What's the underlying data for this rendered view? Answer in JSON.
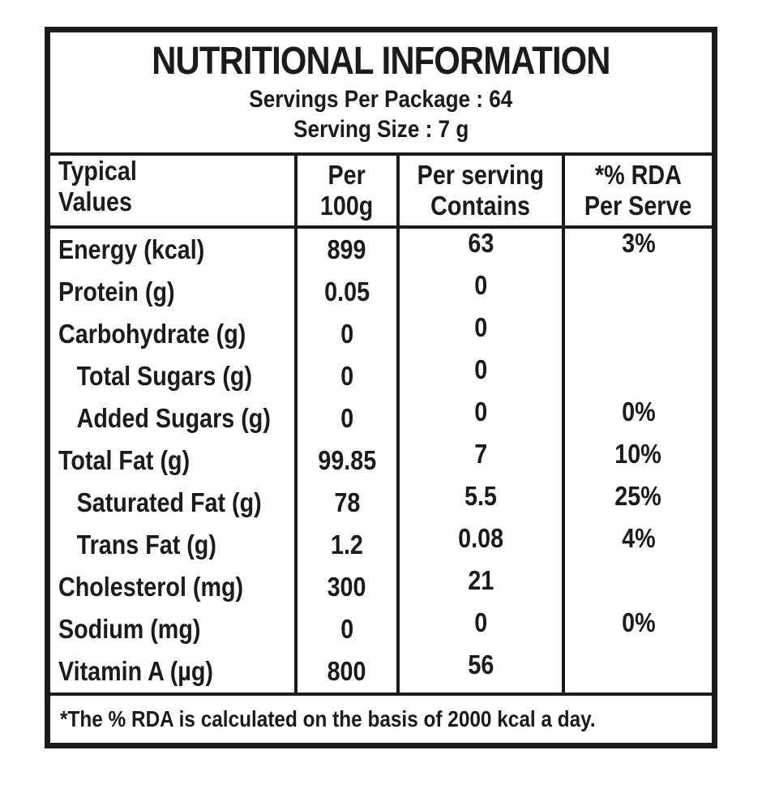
{
  "page": {
    "background": "#ffffff",
    "border_color": "#1b1b1b",
    "text_color": "#1b1b1b"
  },
  "header": {
    "title": "NUTRITIONAL INFORMATION",
    "servings_per_package": "Servings Per Package : 64",
    "serving_size": "Serving Size : 7 g"
  },
  "table": {
    "columns": [
      {
        "line1": "Typical",
        "line2": "Values"
      },
      {
        "line1": "Per",
        "line2": "100g"
      },
      {
        "line1": "Per serving",
        "line2": "Contains"
      },
      {
        "line1": "*% RDA",
        "line2": "Per Serve"
      }
    ],
    "rows": [
      {
        "label": "Energy (kcal)",
        "per_100g": "899",
        "per_serving": "63",
        "rda": "3%",
        "indent": false
      },
      {
        "label": "Protein (g)",
        "per_100g": "0.05",
        "per_serving": "0",
        "rda": "",
        "indent": false
      },
      {
        "label": "Carbohydrate (g)",
        "per_100g": "0",
        "per_serving": "0",
        "rda": "",
        "indent": false
      },
      {
        "label": "Total Sugars (g)",
        "per_100g": "0",
        "per_serving": "0",
        "rda": "",
        "indent": true
      },
      {
        "label": "Added Sugars (g)",
        "per_100g": "0",
        "per_serving": "0",
        "rda": "0%",
        "indent": true
      },
      {
        "label": "Total Fat (g)",
        "per_100g": "99.85",
        "per_serving": "7",
        "rda": "10%",
        "indent": false
      },
      {
        "label": "Saturated Fat (g)",
        "per_100g": "78",
        "per_serving": "5.5",
        "rda": "25%",
        "indent": true
      },
      {
        "label": "Trans Fat (g)",
        "per_100g": "1.2",
        "per_serving": "0.08",
        "rda": "4%",
        "indent": true
      },
      {
        "label": "Cholesterol (mg)",
        "per_100g": "300",
        "per_serving": "21",
        "rda": "",
        "indent": false
      },
      {
        "label": "Sodium (mg)",
        "per_100g": "0",
        "per_serving": "0",
        "rda": "0%",
        "indent": false
      },
      {
        "label": "Vitamin A (µg)",
        "per_100g": "800",
        "per_serving": "56",
        "rda": "",
        "indent": false
      }
    ]
  },
  "footer": {
    "note": "*The % RDA is calculated on the basis of 2000 kcal a day."
  }
}
